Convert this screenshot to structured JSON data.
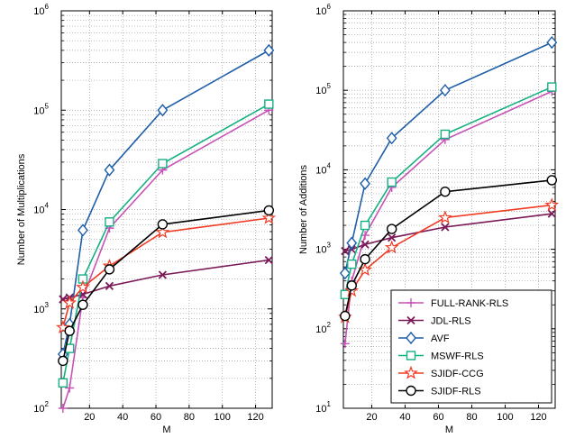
{
  "colors": {
    "FULL-RANK-RLS": "#c752b8",
    "JDL-RLS": "#7a1a57",
    "AVF": "#1f5ea8",
    "MSWF-RLS": "#17b084",
    "SJIDF-CCG": "#ef3b24",
    "SJIDF-RLS": "#000000"
  },
  "markers": {
    "FULL-RANK-RLS": "plus",
    "JDL-RLS": "x",
    "AVF": "diamond",
    "MSWF-RLS": "square",
    "SJIDF-CCG": "star",
    "SJIDF-RLS": "circle"
  },
  "chart_data": [
    {
      "type": "line",
      "yscale": "log",
      "title": "",
      "xlabel": "M",
      "ylabel": "Number of Multiplications",
      "xlim": [
        3,
        130
      ],
      "ylim": [
        100,
        1000000
      ],
      "xticks": [
        20,
        40,
        60,
        80,
        100,
        120
      ],
      "xtick_labels": [
        "20",
        "40",
        "60",
        "80",
        "100",
        "120"
      ],
      "ytick_base": "10",
      "ytick_exps": [
        "2",
        "3",
        "4",
        "5",
        "6"
      ],
      "grid": true,
      "legend": null,
      "x": [
        4,
        8,
        16,
        32,
        64,
        128
      ],
      "series": [
        {
          "name": "FULL-RANK-RLS",
          "values": [
            100,
            160,
            1300,
            6500,
            25000,
            100000
          ]
        },
        {
          "name": "JDL-RLS",
          "values": [
            1250,
            1300,
            1400,
            1700,
            2200,
            3100
          ]
        },
        {
          "name": "AVF",
          "values": [
            350,
            700,
            6200,
            25000,
            100000,
            400000
          ]
        },
        {
          "name": "MSWF-RLS",
          "values": [
            180,
            400,
            2000,
            7500,
            29000,
            115000
          ]
        },
        {
          "name": "SJIDF-CCG",
          "values": [
            650,
            1150,
            1650,
            2700,
            5900,
            8200
          ]
        },
        {
          "name": "SJIDF-RLS",
          "values": [
            300,
            600,
            1100,
            2500,
            7100,
            9800
          ]
        }
      ]
    },
    {
      "type": "line",
      "yscale": "log",
      "title": "",
      "xlabel": "M",
      "ylabel": "Number of Additions",
      "xlim": [
        3,
        130
      ],
      "ylim": [
        10,
        1000000
      ],
      "xticks": [
        20,
        40,
        60,
        80,
        100,
        120
      ],
      "xtick_labels": [
        "20",
        "40",
        "60",
        "80",
        "100",
        "120"
      ],
      "ytick_base": "10",
      "ytick_exps": [
        "1",
        "2",
        "3",
        "4",
        "5",
        "6"
      ],
      "grid": true,
      "legend": "bottom-right",
      "x": [
        4,
        8,
        16,
        32,
        64,
        128
      ],
      "series": [
        {
          "name": "FULL-RANK-RLS",
          "values": [
            65,
            400,
            1500,
            6000,
            24000,
            97000
          ]
        },
        {
          "name": "JDL-RLS",
          "values": [
            950,
            1000,
            1150,
            1400,
            1900,
            2800
          ]
        },
        {
          "name": "AVF",
          "values": [
            500,
            1200,
            6700,
            25000,
            100000,
            400000
          ]
        },
        {
          "name": "MSWF-RLS",
          "values": [
            270,
            650,
            2000,
            7000,
            28000,
            110000
          ]
        },
        {
          "name": "SJIDF-CCG",
          "values": [
            140,
            300,
            550,
            1050,
            2500,
            3600
          ]
        },
        {
          "name": "SJIDF-RLS",
          "values": [
            145,
            350,
            750,
            1800,
            5300,
            7400
          ]
        }
      ]
    }
  ],
  "legend_entries": [
    "FULL-RANK-RLS",
    "JDL-RLS",
    "AVF",
    "MSWF-RLS",
    "SJIDF-CCG",
    "SJIDF-RLS"
  ]
}
